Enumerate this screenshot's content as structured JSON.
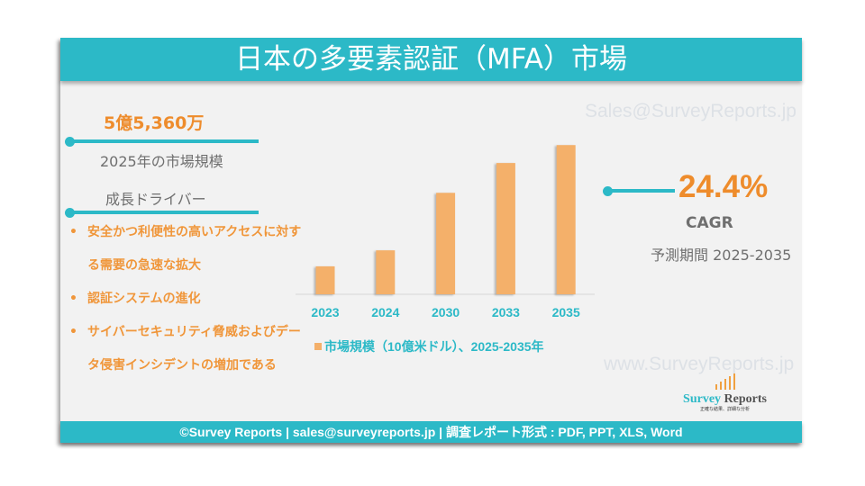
{
  "header": {
    "title": "日本の多要素認証（MFA）市場"
  },
  "market_size": {
    "value": "5億5,360万",
    "label": "2025年の市場規模"
  },
  "drivers": {
    "heading": "成長ドライバー",
    "items": [
      "安全かつ利便性の高いアクセスに対する需要の急速な拡大",
      "認証システムの進化",
      "サイバーセキュリティ脅威およびデータ侵害インシデントの増加である"
    ]
  },
  "cagr": {
    "value": "24.4%",
    "label": "CAGR",
    "period": "予測期間 2025-2035"
  },
  "watermarks": {
    "top": "Sales@SurveyReports.jp",
    "bottom": "www.SurveyReports.jp"
  },
  "logo": {
    "name_a": "Survey",
    "name_b": "Reports",
    "tagline": "正確な結果、詳細な分析"
  },
  "footer": {
    "text": "©Survey Reports | sales@surveyreports.jp |  調査レポート形式 : PDF, PPT, XLS, Word"
  },
  "colors": {
    "accent": "#2cb9c7",
    "bar": "#f4b06a",
    "highlight": "#ee8c2c"
  },
  "chart_data": {
    "type": "bar",
    "categories": [
      "2023",
      "2024",
      "2030",
      "2033",
      "2035"
    ],
    "series": [
      {
        "name": "市場規模（10億米ドル）、2025-2035年",
        "values": [
          0.89,
          1.4,
          3.23,
          4.18,
          4.75
        ]
      }
    ],
    "title": "",
    "xlabel": "",
    "ylabel": "",
    "ylim": [
      0,
      5.1
    ],
    "grid": false,
    "legend": "bottom"
  }
}
